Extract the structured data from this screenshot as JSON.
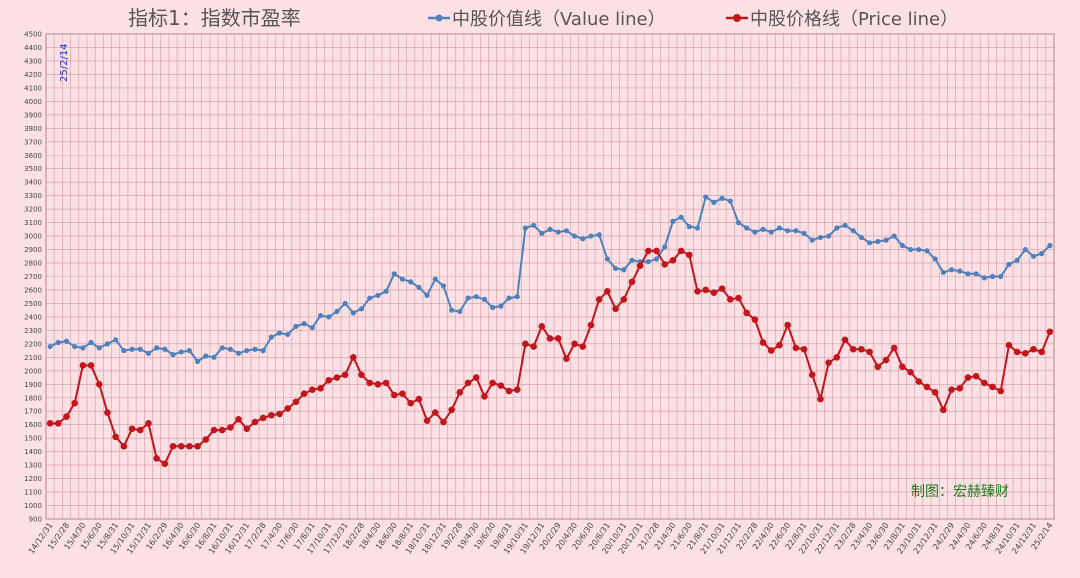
{
  "chart_data": {
    "type": "line",
    "title": "指标1：指数市盈率",
    "credit": "制图：宏赫臻财",
    "date_stamp": "25/2/14",
    "ylim": [
      900,
      4500
    ],
    "y_step": 100,
    "grid": true,
    "legend_position": "top",
    "colors": {
      "background": "#fbe0e4",
      "grid": "#d79aa3",
      "title": "#555555",
      "credit": "#1e7d1e",
      "stamp": "#1f35c8",
      "axis_text": "#444444"
    },
    "x_labels": [
      "14/12/31",
      "15/2/28",
      "15/4/30",
      "15/6/30",
      "15/8/31",
      "15/10/31",
      "15/12/31",
      "16/2/29",
      "16/4/30",
      "16/6/30",
      "16/8/31",
      "16/10/31",
      "16/12/31",
      "17/2/28",
      "17/4/30",
      "17/6/30",
      "17/8/31",
      "17/10/31",
      "17/12/31",
      "18/2/28",
      "18/4/30",
      "18/6/30",
      "18/8/31",
      "18/10/31",
      "18/12/31",
      "19/2/28",
      "19/4/30",
      "19/6/30",
      "19/8/31",
      "19/10/31",
      "19/12/31",
      "20/2/29",
      "20/4/30",
      "20/6/30",
      "20/8/31",
      "20/10/31",
      "20/12/31",
      "21/2/28",
      "21/4/30",
      "21/6/30",
      "21/8/31",
      "21/10/31",
      "21/12/31",
      "22/2/28",
      "22/4/30",
      "22/6/30",
      "22/8/31",
      "22/10/31",
      "22/12/31",
      "23/2/28",
      "23/4/30",
      "23/6/30",
      "23/8/31",
      "23/10/31",
      "23/12/31",
      "24/2/29",
      "24/4/30",
      "24/6/30",
      "24/8/31",
      "24/10/31",
      "24/12/31",
      "25/2/14"
    ],
    "series": [
      {
        "name": "中股价值线（Value line）",
        "color": "#4f81bd",
        "values": [
          2180,
          2210,
          2220,
          2180,
          2170,
          2210,
          2170,
          2200,
          2230,
          2150,
          2160,
          2160,
          2130,
          2170,
          2160,
          2120,
          2140,
          2150,
          2070,
          2110,
          2100,
          2170,
          2160,
          2130,
          2150,
          2160,
          2150,
          2250,
          2280,
          2270,
          2330,
          2350,
          2320,
          2410,
          2400,
          2440,
          2500,
          2430,
          2460,
          2540,
          2560,
          2590,
          2720,
          2680,
          2660,
          2620,
          2560,
          2680,
          2630,
          2450,
          2440,
          2540,
          2550,
          2530,
          2470,
          2480,
          2540,
          2550,
          3060,
          3080,
          3020,
          3050,
          3030,
          3040,
          3000,
          2980,
          3000,
          3010,
          2830,
          2760,
          2750,
          2820,
          2810,
          2810,
          2830,
          2920,
          3110,
          3140,
          3070,
          3060,
          3290,
          3250,
          3280,
          3260,
          3100,
          3060,
          3030,
          3050,
          3030,
          3060,
          3040,
          3040,
          3020,
          2970,
          2990,
          3000,
          3060,
          3080,
          3040,
          2990,
          2950,
          2960,
          2970,
          3000,
          2930,
          2900,
          2900,
          2890,
          2830,
          2730,
          2750,
          2740,
          2720,
          2720,
          2690,
          2700,
          2700,
          2790,
          2820,
          2900,
          2850,
          2870,
          2930
        ]
      },
      {
        "name": "中股价格线（Price line）",
        "color": "#c0161c",
        "values": [
          1610,
          1610,
          1660,
          1760,
          2040,
          2040,
          1900,
          1690,
          1510,
          1440,
          1570,
          1560,
          1610,
          1350,
          1310,
          1440,
          1440,
          1440,
          1440,
          1490,
          1560,
          1560,
          1580,
          1640,
          1570,
          1620,
          1650,
          1670,
          1680,
          1720,
          1770,
          1830,
          1860,
          1870,
          1930,
          1950,
          1970,
          2100,
          1970,
          1910,
          1900,
          1910,
          1820,
          1830,
          1760,
          1790,
          1630,
          1690,
          1620,
          1710,
          1840,
          1910,
          1950,
          1810,
          1910,
          1890,
          1850,
          1860,
          2200,
          2180,
          2330,
          2240,
          2240,
          2090,
          2200,
          2180,
          2340,
          2530,
          2590,
          2460,
          2530,
          2660,
          2780,
          2890,
          2890,
          2790,
          2820,
          2890,
          2860,
          2590,
          2600,
          2580,
          2610,
          2530,
          2540,
          2430,
          2380,
          2210,
          2150,
          2190,
          2340,
          2170,
          2160,
          1970,
          1790,
          2060,
          2100,
          2230,
          2160,
          2160,
          2140,
          2030,
          2080,
          2170,
          2030,
          1990,
          1920,
          1880,
          1840,
          1710,
          1860,
          1870,
          1950,
          1960,
          1910,
          1880,
          1850,
          2190,
          2140,
          2130,
          2160,
          2140,
          2290
        ]
      }
    ]
  }
}
